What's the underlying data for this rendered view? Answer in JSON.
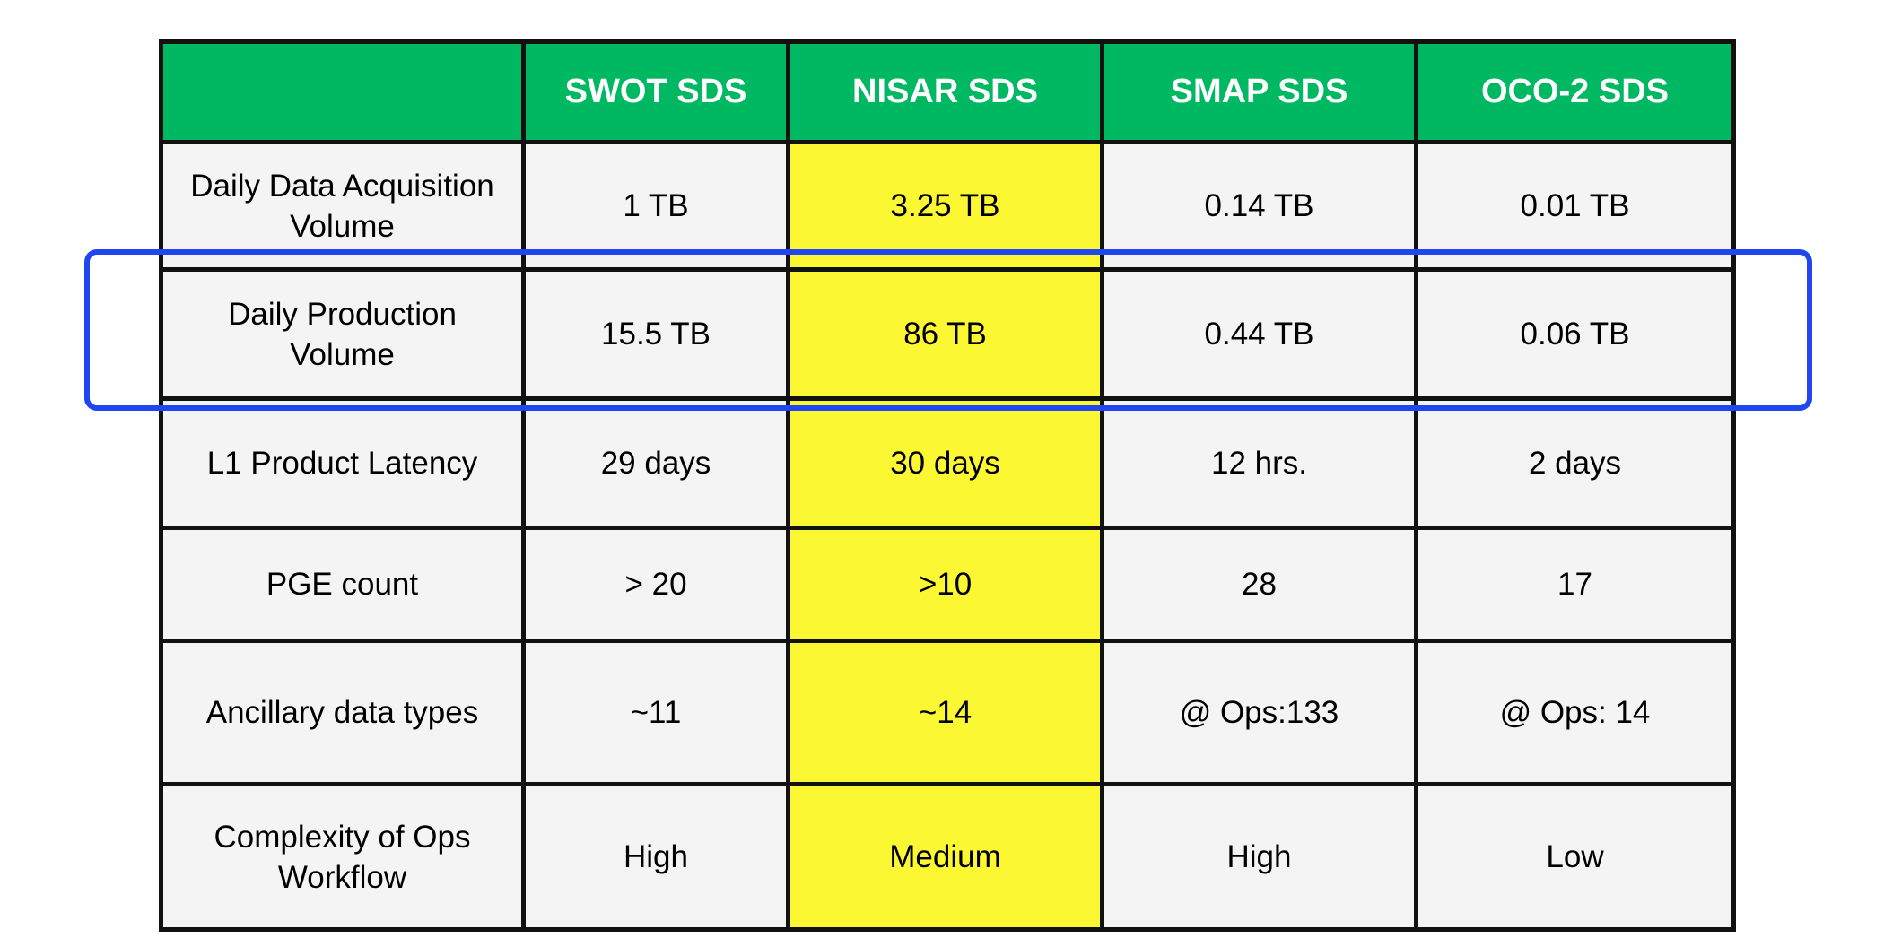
{
  "chart_data": {
    "type": "table",
    "columns": [
      "",
      "SWOT SDS",
      "NISAR SDS",
      "SMAP SDS",
      "OCO-2 SDS"
    ],
    "rows": [
      {
        "label": "Daily Data Acquisition Volume",
        "values": [
          "1 TB",
          "3.25 TB",
          "0.14 TB",
          "0.01 TB"
        ]
      },
      {
        "label": "Daily Production Volume",
        "values": [
          "15.5 TB",
          "86 TB",
          "0.44 TB",
          "0.06 TB"
        ]
      },
      {
        "label": "L1 Product Latency",
        "values": [
          "29 days",
          "30 days",
          "12 hrs.",
          "2 days"
        ]
      },
      {
        "label": "PGE count",
        "values": [
          "> 20",
          ">10",
          "28",
          "17"
        ]
      },
      {
        "label": "Ancillary data types",
        "values": [
          "~11",
          "~14",
          "@ Ops:133",
          "@ Ops: 14"
        ]
      },
      {
        "label": "Complexity of Ops Workflow",
        "values": [
          "High",
          "Medium",
          "High",
          "Low"
        ]
      }
    ],
    "highlighted_column": "NISAR SDS",
    "highlighted_row": "Daily Production Volume"
  },
  "colors": {
    "header_bg": "#00b862",
    "header_text": "#ffffff",
    "cell_bg": "#f4f4f4",
    "highlight_column_bg": "#fbf733",
    "highlight_box_border": "#1f46f0"
  }
}
